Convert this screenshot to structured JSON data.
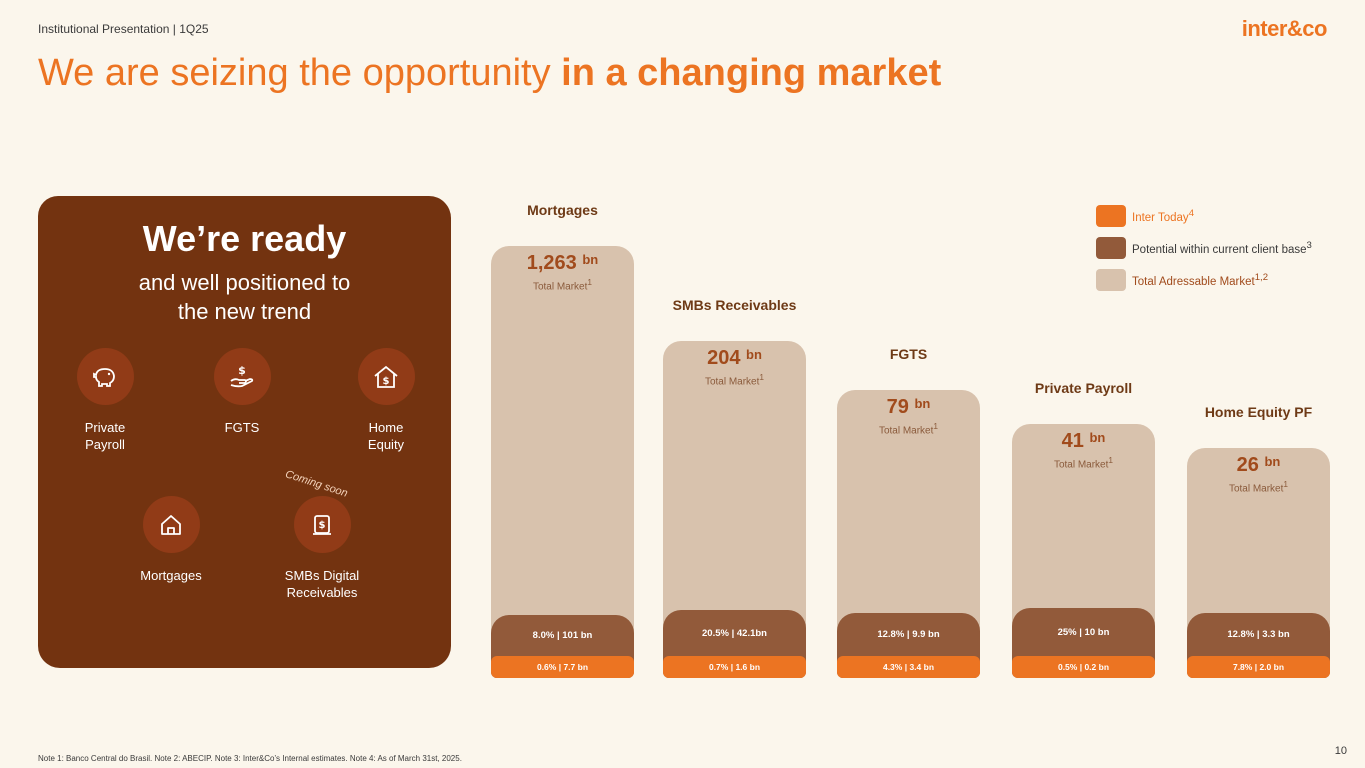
{
  "header": {
    "label": "Institutional Presentation | 1Q25",
    "logo": "inter&co"
  },
  "title": {
    "regular": "We are seizing the opportunity ",
    "bold": "in a changing market"
  },
  "panel": {
    "title": "We’re ready",
    "subtitle_line1": "and well positioned to",
    "subtitle_line2": "the new trend",
    "coming_soon": "Coming soon",
    "products": [
      {
        "line1": "Private",
        "line2": "Payroll",
        "icon": "piggy-bank-icon"
      },
      {
        "line1": "FGTS",
        "line2": "",
        "icon": "hand-money-icon"
      },
      {
        "line1": "Home",
        "line2": "Equity",
        "icon": "home-money-icon"
      },
      {
        "line1": "Mortgages",
        "line2": "",
        "icon": "house-icon"
      },
      {
        "line1": "SMBs Digital",
        "line2": "Receivables",
        "icon": "receivable-doc-icon"
      }
    ]
  },
  "chart_data": {
    "type": "bar",
    "categories": [
      "Mortgages",
      "SMBs Receivables",
      "FGTS",
      "Private Payroll",
      "Home Equity PF"
    ],
    "total_market_bn": [
      1263,
      204,
      79,
      41,
      26
    ],
    "potential_pct": [
      8.0,
      20.5,
      12.8,
      25,
      12.8
    ],
    "potential_bn": [
      101,
      42.1,
      9.9,
      10,
      3.3
    ],
    "inter_today_pct": [
      0.6,
      0.7,
      4.3,
      0.5,
      7.8
    ],
    "inter_today_bn": [
      7.7,
      1.6,
      3.4,
      0.2,
      2.0
    ],
    "labels": {
      "totals": [
        "1,263",
        "204",
        "79",
        "41",
        "26"
      ],
      "unit": "bn",
      "total_market": "Total Market",
      "total_market_sup": "1",
      "potential": [
        "8.0% | 101 bn",
        "20.5% | 42.1bn",
        "12.8% | 9.9 bn",
        "25% | 10 bn",
        "12.8% | 3.3 bn"
      ],
      "today": [
        "0.6% | 7.7 bn",
        "0.7% | 1.6 bn",
        "4.3% | 3.4 bn",
        "0.5% | 0.2 bn",
        "7.8% | 2.0 bn"
      ]
    },
    "legend": [
      {
        "label": "Inter Today",
        "sup": "4",
        "color": "#ec7422"
      },
      {
        "label": "Potential within current client base",
        "sup": "3",
        "color": "#925a3a"
      },
      {
        "label": "Total Adressable Market",
        "sup": "1,2",
        "color": "#d8c2ad"
      }
    ],
    "legend_position": "top-right"
  },
  "footnote": "Note 1: Banco Central do Brasil. Note 2: ABECIP. Note 3: Inter&Co’s Internal estimates. Note 4: As of March 31st, 2025.",
  "page_number": "10"
}
